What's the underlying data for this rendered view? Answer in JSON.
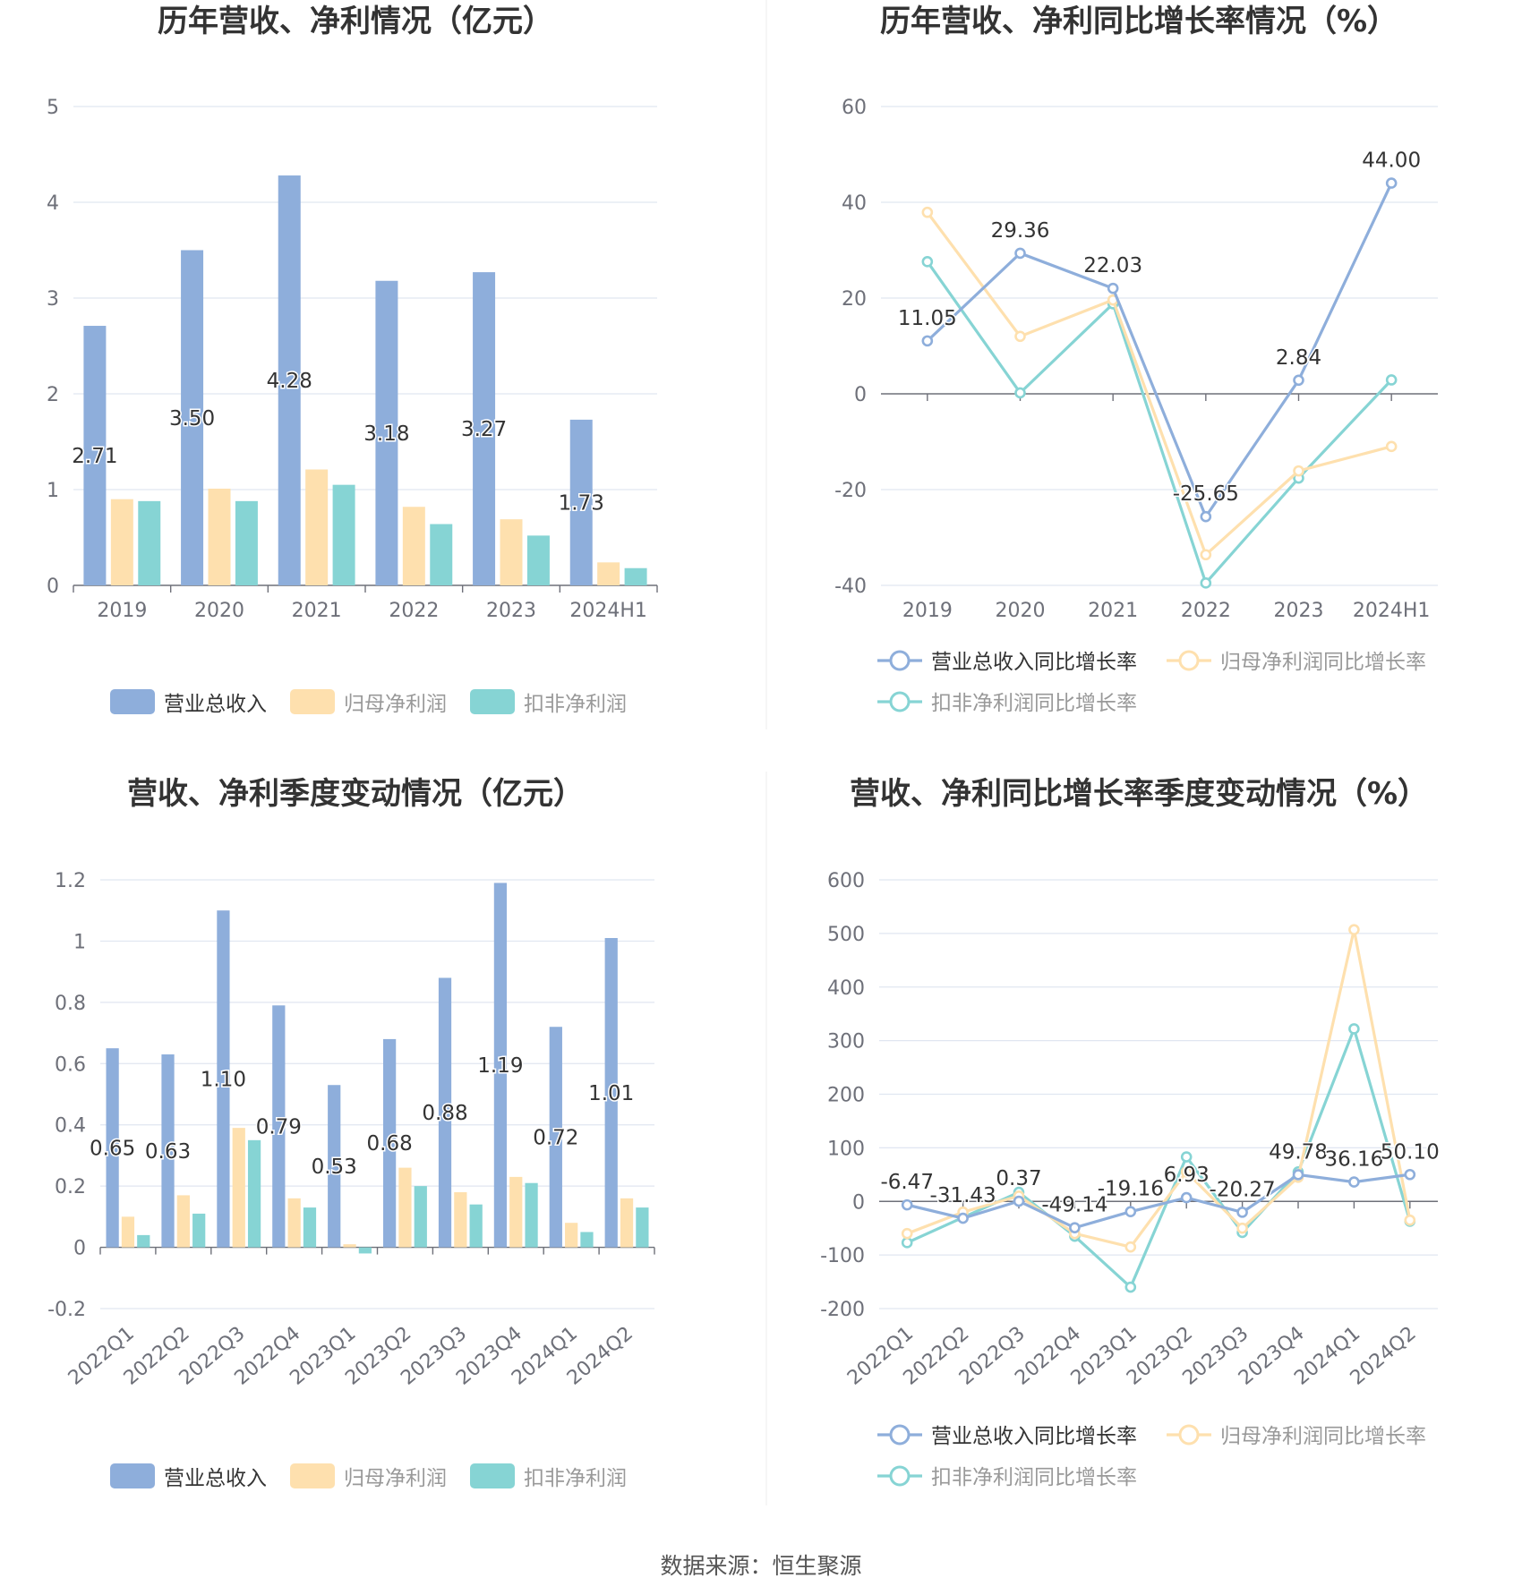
{
  "footer": {
    "source": "数据来源：恒生聚源"
  },
  "colors": {
    "blue": "#8eaedb",
    "orange": "#fee0ae",
    "teal": "#86d4d4",
    "grid": "#e0e6f1",
    "axis": "#6e7079",
    "text": "#333333"
  },
  "chart_data": [
    {
      "id": "annual-bars",
      "type": "bar",
      "title": "历年营收、净利情况（亿元）",
      "categories": [
        "2019",
        "2020",
        "2021",
        "2022",
        "2023",
        "2024H1"
      ],
      "ylim": [
        0,
        5
      ],
      "yticks": [
        "0",
        "1",
        "2",
        "3",
        "4",
        "5"
      ],
      "series": [
        {
          "name": "营业总收入",
          "values": [
            2.71,
            3.5,
            4.28,
            3.18,
            3.27,
            1.73
          ],
          "labels": [
            "2.71",
            "3.50",
            "4.28",
            "3.18",
            "3.27",
            "1.73"
          ]
        },
        {
          "name": "归母净利润",
          "values": [
            0.9,
            1.01,
            1.21,
            0.82,
            0.69,
            0.24
          ]
        },
        {
          "name": "扣非净利润",
          "values": [
            0.88,
            0.88,
            1.05,
            0.64,
            0.52,
            0.18
          ]
        }
      ],
      "legend": "bottom"
    },
    {
      "id": "annual-growth",
      "type": "line",
      "title": "历年营收、净利同比增长率情况（%）",
      "categories": [
        "2019",
        "2020",
        "2021",
        "2022",
        "2023",
        "2024H1"
      ],
      "ylim": [
        -40,
        60
      ],
      "yticks": [
        "-40",
        "-20",
        "0",
        "20",
        "40",
        "60"
      ],
      "series": [
        {
          "name": "营业总收入同比增长率",
          "values": [
            11.05,
            29.36,
            22.03,
            -25.65,
            2.84,
            44.0
          ],
          "labels": [
            "11.05",
            "29.36",
            "22.03",
            "-25.65",
            "2.84",
            "44.00"
          ]
        },
        {
          "name": "归母净利润同比增长率",
          "values": [
            37.9,
            12.0,
            19.6,
            -33.6,
            -16.1,
            -11.0
          ]
        },
        {
          "name": "扣非净利润同比增长率",
          "values": [
            27.6,
            0.2,
            18.8,
            -39.5,
            -17.6,
            2.9
          ]
        }
      ],
      "legend": "bottom"
    },
    {
      "id": "quarterly-bars",
      "type": "bar",
      "title": "营收、净利季度变动情况（亿元）",
      "categories": [
        "2022Q1",
        "2022Q2",
        "2022Q3",
        "2022Q4",
        "2023Q1",
        "2023Q2",
        "2023Q3",
        "2023Q4",
        "2024Q1",
        "2024Q2"
      ],
      "ylim": [
        -0.2,
        1.2
      ],
      "yticks": [
        "-0.2",
        "0",
        "0.2",
        "0.4",
        "0.6",
        "0.8",
        "1",
        "1.2"
      ],
      "series": [
        {
          "name": "营业总收入",
          "values": [
            0.65,
            0.63,
            1.1,
            0.79,
            0.53,
            0.68,
            0.88,
            1.19,
            0.72,
            1.01
          ],
          "labels": [
            "0.65",
            "0.63",
            "1.10",
            "0.79",
            "0.53",
            "0.68",
            "0.88",
            "1.19",
            "0.72",
            "1.01"
          ]
        },
        {
          "name": "归母净利润",
          "values": [
            0.1,
            0.17,
            0.39,
            0.16,
            0.01,
            0.26,
            0.18,
            0.23,
            0.08,
            0.16
          ]
        },
        {
          "name": "扣非净利润",
          "values": [
            0.04,
            0.11,
            0.35,
            0.13,
            -0.02,
            0.2,
            0.14,
            0.21,
            0.05,
            0.13
          ]
        }
      ],
      "legend": "bottom"
    },
    {
      "id": "quarterly-growth",
      "type": "line",
      "title": "营收、净利同比增长率季度变动情况（%）",
      "categories": [
        "2022Q1",
        "2022Q2",
        "2022Q3",
        "2022Q4",
        "2023Q1",
        "2023Q2",
        "2023Q3",
        "2023Q4",
        "2024Q1",
        "2024Q2"
      ],
      "ylim": [
        -200,
        600
      ],
      "yticks": [
        "-200",
        "-100",
        "0",
        "100",
        "200",
        "300",
        "400",
        "500",
        "600"
      ],
      "series": [
        {
          "name": "营业总收入同比增长率",
          "values": [
            -6.47,
            -31.43,
            0.37,
            -49.14,
            -19.16,
            6.93,
            -20.27,
            49.78,
            36.16,
            50.1
          ],
          "labels": [
            "-6.47",
            "-31.43",
            "0.37",
            "-49.14",
            "-19.16",
            "6.93",
            "-20.27",
            "49.78",
            "36.16",
            "50.10"
          ]
        },
        {
          "name": "归母净利润同比增长率",
          "values": [
            -60,
            -20,
            10,
            -60,
            -85,
            55,
            -50,
            45,
            507,
            -35
          ]
        },
        {
          "name": "扣非净利润同比增长率",
          "values": [
            -77,
            -30,
            17,
            -65,
            -160,
            83,
            -58,
            55,
            322,
            -37
          ]
        }
      ],
      "legend": "bottom"
    }
  ]
}
